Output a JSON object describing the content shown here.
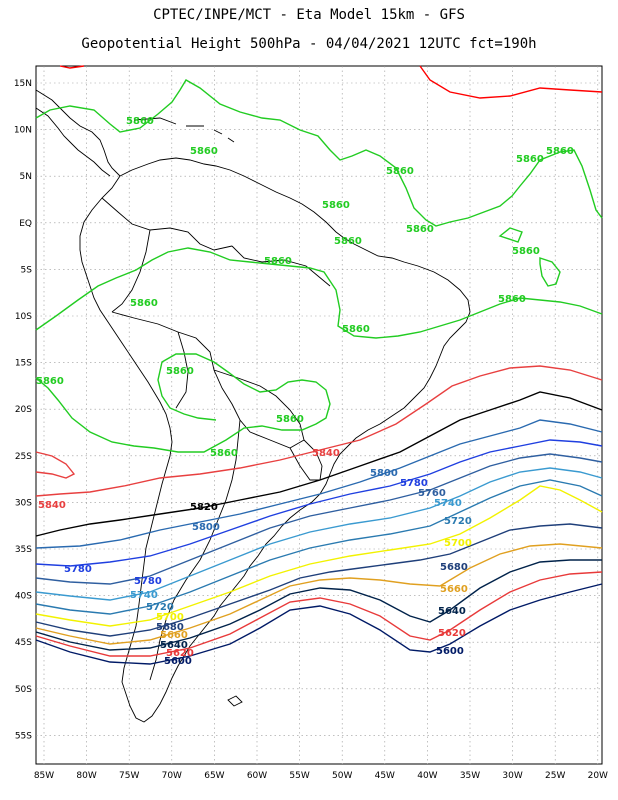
{
  "header": {
    "line1": "CPTEC/INPE/MCT -  Eta Model 15km - GFS",
    "line2": "Geopotential Height 500hPa - 04/04/2021 12UTC fct=190h"
  },
  "axes": {
    "lat_labels": [
      "15N",
      "10N",
      "5N",
      "EQ",
      "5S",
      "10S",
      "15S",
      "20S",
      "25S",
      "30S",
      "35S",
      "40S",
      "45S",
      "50S",
      "55S"
    ],
    "lon_labels": [
      "85W",
      "80W",
      "75W",
      "70W",
      "65W",
      "60W",
      "55W",
      "50W",
      "45W",
      "40W",
      "35W",
      "30W",
      "25W",
      "20W"
    ]
  },
  "colors": {
    "5600": "#001a66",
    "5620": "#e83a3a",
    "5640": "#00224a",
    "5660": "#e0a020",
    "5680": "#1f3f7a",
    "5700": "#f2f200",
    "5720": "#2a7ab0",
    "5740": "#3a9ad0",
    "5760": "#2f5fa0",
    "5780": "#1f3fe0",
    "5800": "#2a6ab0",
    "5820": "#000000",
    "5840": "#e84040",
    "5860": "#22cc22",
    "5880": "#ff0000",
    "land": "#000000",
    "grid": "#9a9a9a"
  },
  "contour_labels": [
    {
      "id": "g1",
      "text": "5860",
      "color": "5860"
    },
    {
      "id": "g2",
      "text": "5860",
      "color": "5860"
    },
    {
      "id": "g3",
      "text": "5860",
      "color": "5860"
    },
    {
      "id": "g4",
      "text": "5860",
      "color": "5860"
    },
    {
      "id": "g5",
      "text": "5860",
      "color": "5860"
    },
    {
      "id": "g6",
      "text": "5860",
      "color": "5860"
    },
    {
      "id": "g7",
      "text": "5860",
      "color": "5860"
    },
    {
      "id": "g8",
      "text": "5860",
      "color": "5860"
    },
    {
      "id": "g9",
      "text": "5860",
      "color": "5860"
    },
    {
      "id": "g10",
      "text": "5860",
      "color": "5860"
    },
    {
      "id": "g11",
      "text": "5860",
      "color": "5860"
    },
    {
      "id": "g12",
      "text": "5860",
      "color": "5860"
    },
    {
      "id": "g13",
      "text": "5860",
      "color": "5860"
    },
    {
      "id": "g14",
      "text": "5860",
      "color": "5860"
    },
    {
      "id": "g15",
      "text": "5860",
      "color": "5860"
    },
    {
      "id": "g16",
      "text": "5860",
      "color": "5860"
    },
    {
      "id": "g17",
      "text": "5860",
      "color": "5860"
    },
    {
      "id": "r1",
      "text": "5840",
      "color": "5840"
    },
    {
      "id": "r2",
      "text": "5840",
      "color": "5840"
    },
    {
      "id": "k1",
      "text": "5820",
      "color": "5820"
    },
    {
      "id": "b1",
      "text": "5800",
      "color": "5800"
    },
    {
      "id": "b2",
      "text": "5800",
      "color": "5800"
    },
    {
      "id": "b3",
      "text": "5780",
      "color": "5780"
    },
    {
      "id": "b4",
      "text": "5780",
      "color": "5780"
    },
    {
      "id": "b5",
      "text": "5780",
      "color": "5780"
    },
    {
      "id": "b6",
      "text": "5760",
      "color": "5760"
    },
    {
      "id": "b7",
      "text": "5740",
      "color": "5740"
    },
    {
      "id": "b8",
      "text": "5740",
      "color": "5740"
    },
    {
      "id": "b9",
      "text": "5720",
      "color": "5720"
    },
    {
      "id": "b10",
      "text": "5720",
      "color": "5720"
    },
    {
      "id": "y1",
      "text": "5700",
      "color": "5700"
    },
    {
      "id": "y2",
      "text": "5700",
      "color": "5700"
    },
    {
      "id": "n1",
      "text": "5680",
      "color": "5680"
    },
    {
      "id": "n2",
      "text": "5680",
      "color": "5680"
    },
    {
      "id": "o1",
      "text": "5660",
      "color": "5660"
    },
    {
      "id": "o2",
      "text": "5660",
      "color": "5660"
    },
    {
      "id": "n3",
      "text": "5640",
      "color": "5640"
    },
    {
      "id": "n4",
      "text": "5640",
      "color": "5640"
    },
    {
      "id": "r3",
      "text": "5620",
      "color": "5620"
    },
    {
      "id": "r4",
      "text": "5620",
      "color": "5620"
    },
    {
      "id": "n5",
      "text": "5600",
      "color": "5600"
    },
    {
      "id": "n6",
      "text": "5600",
      "color": "5600"
    }
  ]
}
